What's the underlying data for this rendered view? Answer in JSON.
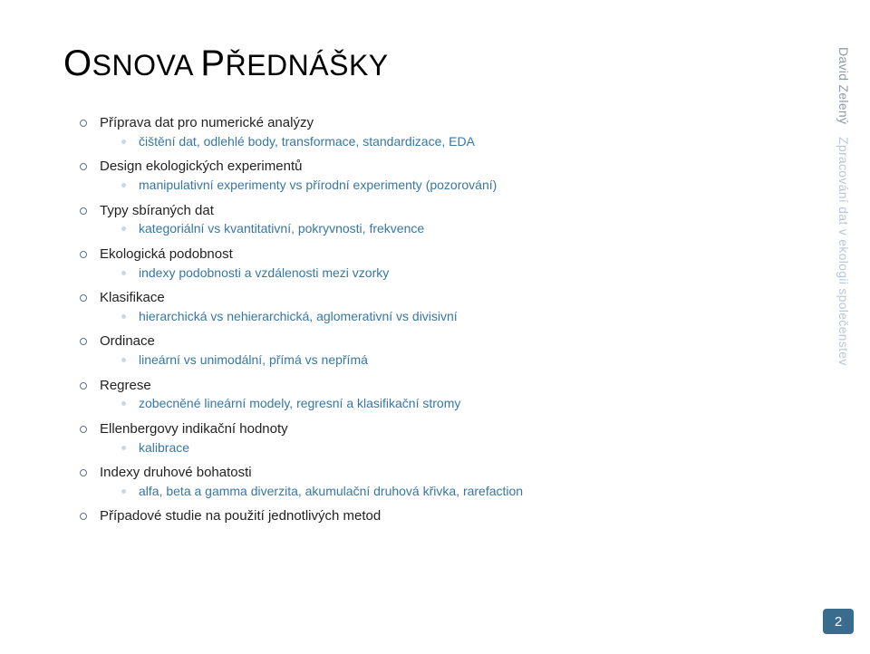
{
  "title_parts": {
    "c1": "O",
    "r1": "SNOVA ",
    "c2": "P",
    "r2": "ŘEDNÁŠKY"
  },
  "sidebar": {
    "author": "David Zelený",
    "subtitle": "Zpracování dat v ekologii společenstev"
  },
  "page_number": "2",
  "colors": {
    "l1_bullet_border": "#5d7381",
    "l2_dot_fill": "#c6d9e6",
    "l2_text": "#3777a3",
    "author": "#8b9aa6",
    "subtitle": "#b3c9d9",
    "pagenum_bg": "#3a6c8d"
  },
  "outline": [
    {
      "label": "Příprava dat pro numerické analýzy",
      "sub": [
        "čištění dat, odlehlé body, transformace, standardizace, EDA"
      ]
    },
    {
      "label": "Design ekologických experimentů",
      "sub": [
        "manipulativní experimenty vs přírodní experimenty (pozorování)"
      ]
    },
    {
      "label": "Typy sbíraných dat",
      "sub": [
        "kategoriální vs kvantitativní, pokryvnosti, frekvence"
      ]
    },
    {
      "label": "Ekologická podobnost",
      "sub": [
        "indexy podobnosti a vzdálenosti mezi vzorky"
      ]
    },
    {
      "label": "Klasifikace",
      "sub": [
        "hierarchická vs nehierarchická, aglomerativní vs divisivní"
      ]
    },
    {
      "label": "Ordinace",
      "sub": [
        "lineární vs unimodální, přímá vs nepřímá"
      ]
    },
    {
      "label": "Regrese",
      "sub": [
        "zobecněné lineární modely, regresní a klasifikační stromy"
      ]
    },
    {
      "label": "Ellenbergovy indikační hodnoty",
      "sub": [
        "kalibrace"
      ]
    },
    {
      "label": "Indexy druhové bohatosti",
      "sub": [
        "alfa, beta a gamma diverzita, akumulační druhová křivka, rarefaction"
      ]
    },
    {
      "label": "Případové studie na použití jednotlivých metod",
      "sub": []
    }
  ]
}
